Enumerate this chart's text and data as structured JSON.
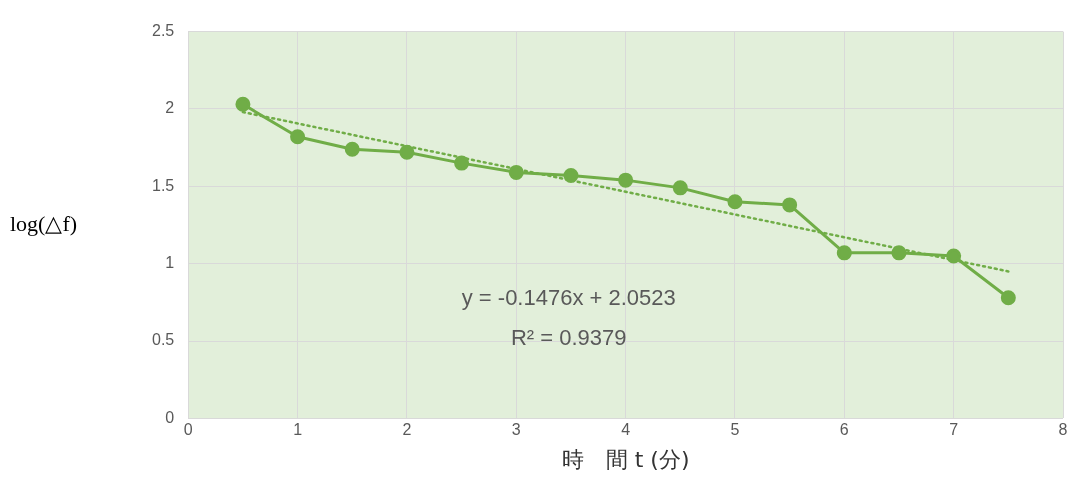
{
  "chart_data": {
    "type": "line",
    "xlabel": "時　間 t (分)",
    "ylabel": "log(△f)",
    "x": [
      0.5,
      1,
      1.5,
      2,
      2.5,
      3,
      3.5,
      4,
      4.5,
      5,
      5.5,
      6,
      6.5,
      7,
      7.5
    ],
    "series": [
      {
        "color": "#70ad47",
        "marker": "circle",
        "line_style": "solid",
        "values": [
          2.03,
          1.82,
          1.74,
          1.72,
          1.65,
          1.59,
          1.57,
          1.54,
          1.49,
          1.4,
          1.38,
          1.07,
          1.07,
          1.05,
          0.78
        ]
      },
      {
        "color": "#70ad47",
        "marker": "none",
        "line_style": "dotted",
        "x": [
          0.5,
          7.5
        ],
        "values": [
          1.98,
          0.95
        ]
      }
    ],
    "xlim": [
      0,
      8
    ],
    "xticks": [
      0,
      1,
      2,
      3,
      4,
      5,
      6,
      7,
      8
    ],
    "ylim": [
      0,
      2.5
    ],
    "yticks": [
      0,
      0.5,
      1,
      1.5,
      2,
      2.5
    ],
    "grid": true,
    "legend": false,
    "annotations": [
      "y = -0.1476x + 2.0523",
      "R² = 0.9379"
    ]
  }
}
